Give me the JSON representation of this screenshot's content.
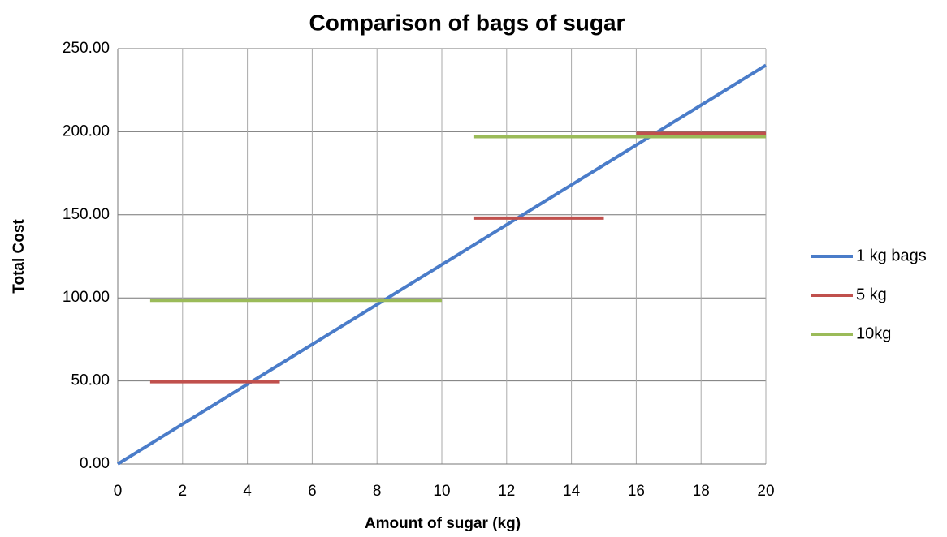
{
  "chart_data": {
    "type": "line",
    "title": "Comparison of bags of sugar",
    "xlabel": "Amount of sugar (kg)",
    "ylabel": "Total Cost",
    "xlim": [
      0,
      20
    ],
    "xticks": [
      0,
      2,
      4,
      6,
      8,
      10,
      12,
      14,
      16,
      18,
      20
    ],
    "ylim": [
      0,
      250
    ],
    "yticks": [
      {
        "value": 0,
        "label": "0.00"
      },
      {
        "value": 50,
        "label": "50.00"
      },
      {
        "value": 100,
        "label": "100.00"
      },
      {
        "value": 150,
        "label": "150.00"
      },
      {
        "value": 200,
        "label": "200.00"
      },
      {
        "value": 250,
        "label": "250.00"
      }
    ],
    "grid": true,
    "legend": "right",
    "series": [
      {
        "name": "1 kg bags",
        "color": "#4a7cc9",
        "x": [
          0,
          1,
          2,
          3,
          4,
          5,
          6,
          7,
          8,
          9,
          10,
          11,
          12,
          13,
          14,
          15,
          16,
          17,
          18,
          19,
          20
        ],
        "values": [
          0,
          12,
          24,
          36,
          48,
          60,
          72,
          84,
          96,
          108,
          120,
          132,
          144,
          156,
          168,
          180,
          192,
          204,
          216,
          228,
          240
        ]
      },
      {
        "name": "5 kg",
        "color": "#c0504d",
        "x": [
          1,
          5,
          5.5,
          11,
          15,
          15.5,
          16,
          20
        ],
        "values": [
          49.5,
          49.5,
          null,
          148,
          148,
          null,
          199,
          199
        ]
      },
      {
        "name": "10kg",
        "color": "#9bbb59",
        "x": [
          1,
          10,
          10.5,
          11,
          20
        ],
        "values": [
          98.5,
          98.5,
          null,
          197,
          197
        ]
      }
    ]
  }
}
